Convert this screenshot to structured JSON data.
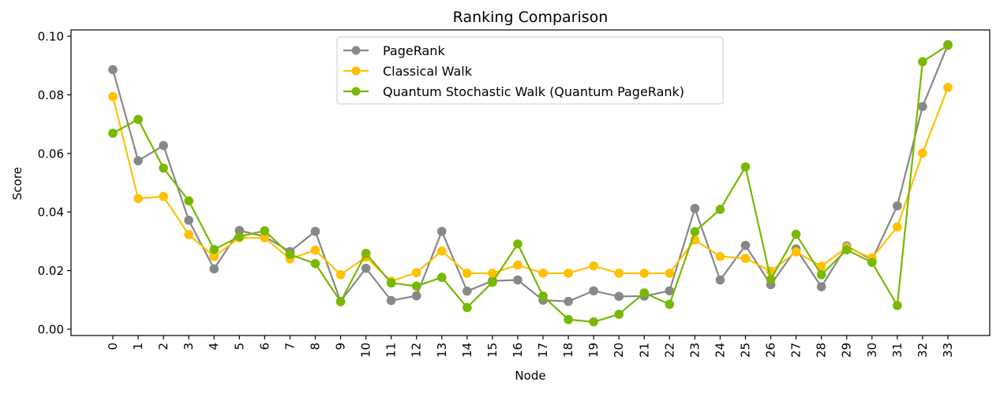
{
  "chart_data": {
    "type": "line",
    "title": "Ranking Comparison",
    "xlabel": "Node",
    "ylabel": "Score",
    "ylim": [
      0.0,
      0.1
    ],
    "yticks": [
      "0.00",
      "0.02",
      "0.04",
      "0.06",
      "0.08",
      "0.10"
    ],
    "ytick_values": [
      0.0,
      0.02,
      0.04,
      0.06,
      0.08,
      0.1
    ],
    "grid": false,
    "legend_position": "upper center",
    "x": [
      0,
      1,
      2,
      3,
      4,
      5,
      6,
      7,
      8,
      9,
      10,
      11,
      12,
      13,
      14,
      15,
      16,
      17,
      18,
      19,
      20,
      21,
      22,
      23,
      24,
      25,
      26,
      27,
      28,
      29,
      30,
      31,
      32,
      33
    ],
    "series": [
      {
        "name": "PageRank",
        "color": "#888888",
        "values": [
          0.0886,
          0.0575,
          0.0627,
          0.0372,
          0.0206,
          0.0337,
          0.0316,
          0.0265,
          0.0334,
          0.0095,
          0.0208,
          0.0098,
          0.0114,
          0.0334,
          0.013,
          0.0165,
          0.0168,
          0.0099,
          0.0095,
          0.0131,
          0.0112,
          0.0113,
          0.0131,
          0.0412,
          0.0168,
          0.0286,
          0.0152,
          0.0274,
          0.0145,
          0.0284,
          0.0237,
          0.0421,
          0.076,
          0.0971
        ]
      },
      {
        "name": "Classical Walk",
        "color": "#ffc000",
        "values": [
          0.0794,
          0.0446,
          0.0453,
          0.0323,
          0.0248,
          0.0312,
          0.0312,
          0.024,
          0.027,
          0.0186,
          0.0246,
          0.0164,
          0.0193,
          0.0267,
          0.0191,
          0.0191,
          0.0219,
          0.0191,
          0.0191,
          0.0216,
          0.0191,
          0.0191,
          0.0191,
          0.0305,
          0.0248,
          0.0242,
          0.0198,
          0.0264,
          0.0215,
          0.0279,
          0.0243,
          0.0349,
          0.0601,
          0.0825
        ]
      },
      {
        "name": "Quantum Stochastic Walk (Quantum PageRank)",
        "color": "#76b900",
        "values": [
          0.0669,
          0.0716,
          0.055,
          0.0438,
          0.0272,
          0.0316,
          0.0336,
          0.0255,
          0.0224,
          0.0094,
          0.0259,
          0.0158,
          0.0147,
          0.0177,
          0.0074,
          0.016,
          0.0291,
          0.0113,
          0.0033,
          0.0025,
          0.0051,
          0.0124,
          0.0085,
          0.0333,
          0.0409,
          0.0554,
          0.017,
          0.0324,
          0.0186,
          0.0271,
          0.0228,
          0.0081,
          0.0913,
          0.0969
        ]
      }
    ]
  }
}
